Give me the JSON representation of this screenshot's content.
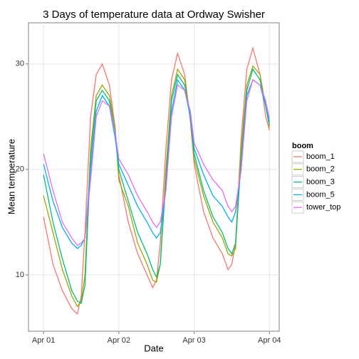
{
  "chart_data": {
    "type": "line",
    "title": "3 Days of temperature data at Ordway Swisher",
    "x_label": "Date",
    "y_label": "Mean temperature",
    "legend_title": "boom",
    "legend": "right",
    "grid": true,
    "x": [
      0,
      0.125,
      0.25,
      0.375,
      0.45,
      0.5,
      0.55,
      0.625,
      0.7,
      0.78,
      0.875,
      0.95,
      1.0,
      1.125,
      1.25,
      1.375,
      1.45,
      1.5,
      1.55,
      1.625,
      1.7,
      1.78,
      1.875,
      1.95,
      2.0,
      2.125,
      2.25,
      2.375,
      2.45,
      2.5,
      2.55,
      2.625,
      2.7,
      2.78,
      2.875,
      2.95,
      3.0
    ],
    "xlim": [
      -0.2,
      3.13
    ],
    "xticks": [
      {
        "value": 0,
        "label": "Apr 01"
      },
      {
        "value": 1,
        "label": "Apr 02"
      },
      {
        "value": 2,
        "label": "Apr 03"
      },
      {
        "value": 3,
        "label": "Apr 04"
      }
    ],
    "ylim": [
      4.66,
      33.9
    ],
    "yticks": [
      10,
      20,
      30
    ],
    "series": [
      {
        "name": "boom_1",
        "color": "#F8766D",
        "values": [
          15.5,
          11,
          8.5,
          6.8,
          6.3,
          8,
          14,
          25,
          29,
          30,
          28,
          24,
          19.5,
          15,
          12,
          10,
          8.8,
          9.5,
          13,
          22,
          28.5,
          31,
          29,
          24.5,
          20.5,
          16,
          13.5,
          12,
          10.5,
          11,
          13,
          23,
          29.5,
          31.5,
          29,
          25,
          23.7
        ]
      },
      {
        "name": "boom_2",
        "color": "#A3A500",
        "values": [
          17.5,
          14,
          10.5,
          8,
          7,
          7.5,
          10,
          22,
          27,
          28,
          27,
          24,
          19,
          16.5,
          13,
          11,
          9.5,
          9.3,
          11,
          20,
          27,
          29.5,
          28.5,
          25,
          21,
          17.5,
          15,
          13.5,
          12,
          11.8,
          12.5,
          22,
          28,
          29.8,
          29,
          26,
          24
        ]
      },
      {
        "name": "boom_3",
        "color": "#00BF7D",
        "values": [
          19.5,
          15,
          11.5,
          8.5,
          7.5,
          7.3,
          9,
          21,
          26.5,
          27.5,
          26.5,
          23.5,
          20,
          17,
          14,
          12,
          10.5,
          9.8,
          11,
          19,
          26.5,
          29,
          28,
          25,
          21.5,
          18,
          15.5,
          14,
          12.5,
          12,
          13,
          21,
          27.5,
          29.5,
          28.5,
          26,
          24.2
        ]
      },
      {
        "name": "boom_5",
        "color": "#00B0F6",
        "values": [
          20.5,
          17,
          14.5,
          13,
          12.5,
          12.8,
          13.5,
          20,
          25.5,
          27,
          26,
          23,
          20.5,
          18.5,
          16.5,
          15,
          14,
          13.5,
          14,
          18,
          25.5,
          28.5,
          27.5,
          25,
          22,
          19.5,
          17.5,
          16.5,
          15.5,
          15,
          16,
          20,
          27,
          28.5,
          28,
          26,
          24.5
        ]
      },
      {
        "name": "tower_top",
        "color": "#E76BF3",
        "values": [
          21.5,
          18,
          15,
          13.5,
          12.8,
          13,
          13.5,
          19,
          25,
          26.5,
          26,
          23.5,
          21,
          19.5,
          17.5,
          16,
          15,
          14.5,
          15,
          18,
          25,
          28,
          27.5,
          25.5,
          22.5,
          20.5,
          19,
          18,
          16.5,
          16,
          16.5,
          20,
          26.5,
          28.5,
          28,
          26.5,
          24.8
        ]
      }
    ]
  }
}
